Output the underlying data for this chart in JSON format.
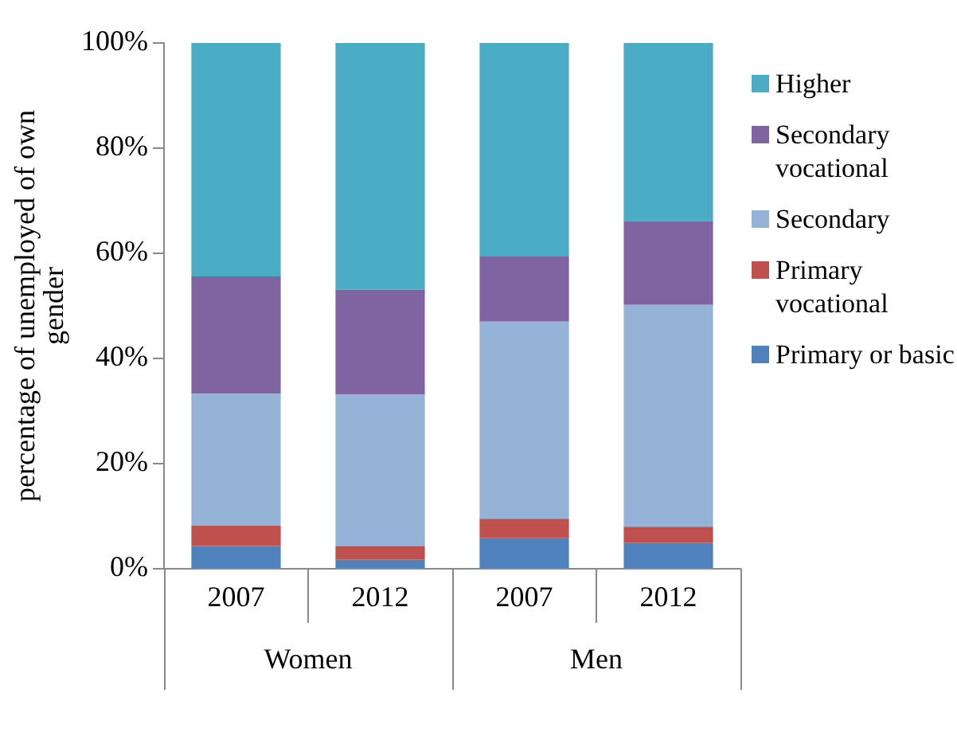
{
  "chart_data": {
    "type": "bar",
    "stacked": true,
    "ylabel": "percentage of unemployed of own gender",
    "categories": [
      "2007",
      "2012",
      "2007",
      "2012"
    ],
    "annotations": [
      "Women",
      "Men"
    ],
    "series": [
      {
        "name": "Primary or basic",
        "color": "#4f81bd",
        "values": [
          4.3,
          1.7,
          5.8,
          4.9
        ]
      },
      {
        "name": "Primary vocational",
        "color": "#c0504d",
        "values": [
          3.9,
          2.6,
          3.7,
          3.1
        ]
      },
      {
        "name": "Secondary",
        "color": "#95b3d7",
        "values": [
          25.1,
          28.8,
          37.5,
          42.2
        ]
      },
      {
        "name": "Secondary vocational",
        "color": "#8064a2",
        "values": [
          22.3,
          20.0,
          12.5,
          15.9
        ]
      },
      {
        "name": "Higher",
        "color": "#4bacc6",
        "values": [
          44.4,
          46.9,
          40.5,
          33.9
        ]
      }
    ],
    "ylim": [
      0,
      100
    ],
    "yticks": [
      {
        "value": 0,
        "label": "0%"
      },
      {
        "value": 20,
        "label": "20%"
      },
      {
        "value": 40,
        "label": "40%"
      },
      {
        "value": 60,
        "label": "60%"
      },
      {
        "value": 80,
        "label": "80%"
      },
      {
        "value": 100,
        "label": "100%"
      }
    ],
    "grid": false,
    "legend": "right"
  }
}
